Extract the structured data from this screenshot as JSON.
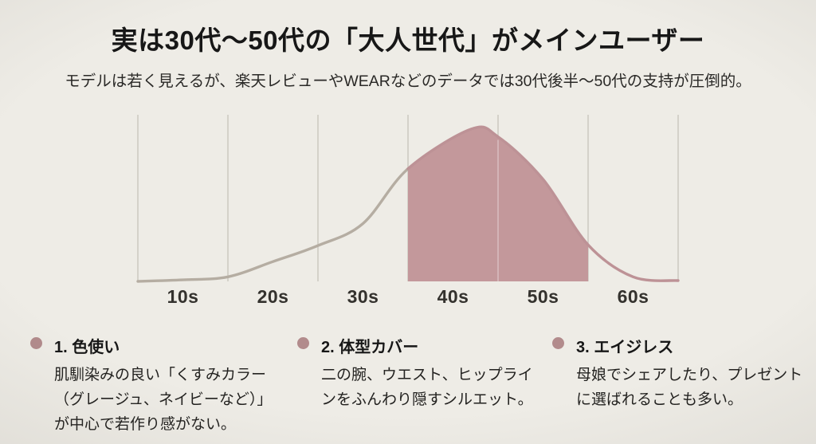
{
  "title": "実は30代〜50代の「大人世代」がメインユーザー",
  "subtitle": "モデルは若く見えるが、楽天レビューやWEARなどのデータでは30代後半〜50代の支持が圧倒的。",
  "colors": {
    "background": "#eeece6",
    "highlight_fill": "#c3989b",
    "curve_left": "#b5ada2",
    "curve_right": "#bd9296",
    "grid": "#c9c6bd",
    "grid_over_fill": "rgba(255,255,255,0.40)",
    "bullet_dot": "#b28b8c",
    "title_text": "#171717",
    "body_text": "#232220"
  },
  "chart_data": {
    "type": "area",
    "x_tick_labels": [
      "10s",
      "20s",
      "30s",
      "40s",
      "50s",
      "60s"
    ],
    "curve": {
      "x_decade_units": [
        0,
        0.5,
        1,
        1.5,
        2,
        2.5,
        3,
        3.7,
        4,
        4.5,
        5,
        5.5,
        6
      ],
      "density_norm": [
        0,
        0.01,
        0.03,
        0.13,
        0.235,
        0.38,
        0.74,
        1.0,
        0.95,
        0.67,
        0.24,
        0.03,
        0.005
      ]
    },
    "peak_at": "early-mid 40s",
    "highlight_range_u": [
      3,
      5
    ],
    "highlight_covers": [
      "40s",
      "50s"
    ],
    "grid": true,
    "legend": false,
    "ylim": [
      0,
      1
    ]
  },
  "bullets": [
    {
      "title": "1. 色使い",
      "body": "肌馴染みの良い「くすみカラー（グレージュ、ネイビーなど）」が中心で若作り感がない。"
    },
    {
      "title": "2. 体型カバー",
      "body": "二の腕、ウエスト、ヒップラインをふんわり隠すシルエット。"
    },
    {
      "title": "3. エイジレス",
      "body": "母娘でシェアしたり、プレゼントに選ばれることも多い。"
    }
  ]
}
